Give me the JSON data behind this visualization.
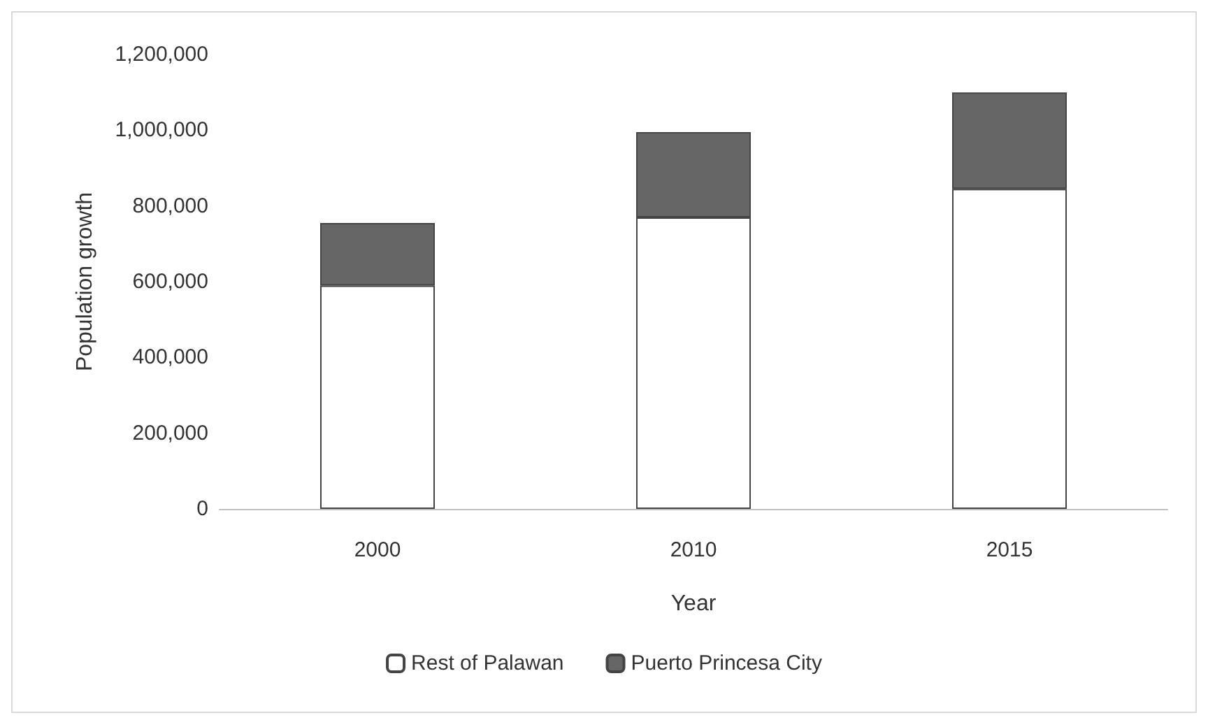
{
  "chart_data": {
    "type": "bar",
    "stacked": true,
    "xlabel": "Year",
    "ylabel": "Population growth",
    "categories": [
      "2000",
      "2010",
      "2015"
    ],
    "series": [
      {
        "name": "Rest of Palawan",
        "color": "#ffffff",
        "values": [
          590000,
          770000,
          845000
        ]
      },
      {
        "name": "Puerto Princesa City",
        "color": "#666666",
        "values": [
          165000,
          225000,
          255000
        ]
      }
    ],
    "ylim": [
      0,
      1200000
    ],
    "yticks": [
      0,
      {
        "value": 200000,
        "label": "200,000"
      },
      {
        "value": 400000,
        "label": "400,000"
      },
      {
        "value": 600000,
        "label": "600,000"
      },
      {
        "value": 800000,
        "label": "800,000"
      },
      {
        "value": 1000000,
        "label": "1,000,000"
      },
      {
        "value": 1200000,
        "label": "1,200,000"
      }
    ],
    "grid": false,
    "legend": "bottom"
  }
}
